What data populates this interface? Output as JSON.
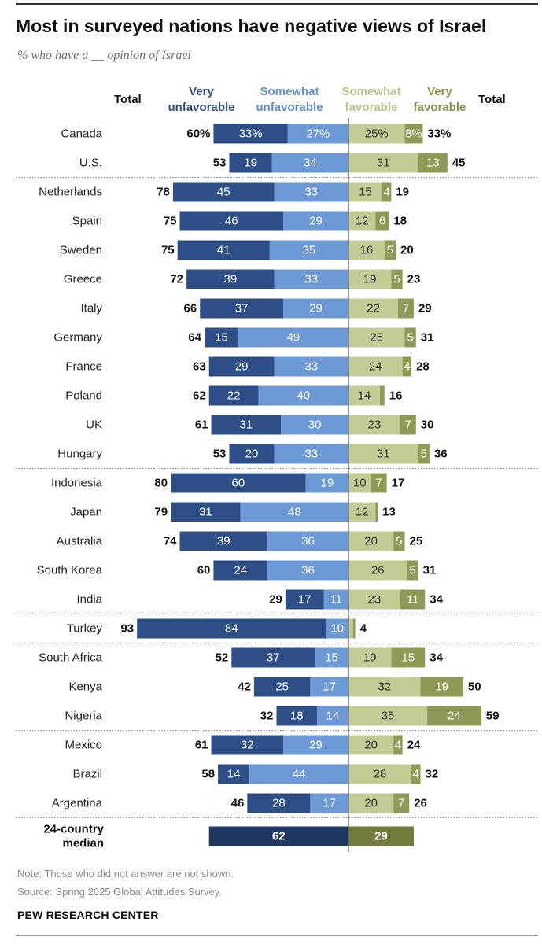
{
  "title": "Most in surveyed nations have negative views of Israel",
  "subtitle": "% who have a __ opinion of Israel",
  "headers": {
    "total_left": "Total",
    "very_unfavorable": [
      "Very",
      "unfavorable"
    ],
    "somewhat_unfavorable": [
      "Somewhat",
      "unfavorable"
    ],
    "somewhat_favorable": [
      "Somewhat",
      "favorable"
    ],
    "very_favorable": [
      "Very",
      "favorable"
    ],
    "total_right": "Total"
  },
  "colors": {
    "very_unfavorable": "#2e4e87",
    "somewhat_unfavorable": "#6d9ad7",
    "somewhat_favorable": "#c4cc96",
    "very_favorable": "#8f9a56",
    "median_unfavorable": "#1f3762",
    "median_favorable": "#707b3c",
    "header_very_unfavorable": "#2e4e87",
    "header_somewhat_unfavorable": "#5f8fd0",
    "header_somewhat_favorable": "#b9c08a",
    "header_very_favorable": "#87924d"
  },
  "chart_data": {
    "type": "bar",
    "orientation": "horizontal-diverging",
    "series_names": [
      "Very unfavorable",
      "Somewhat unfavorable",
      "Somewhat favorable",
      "Very favorable"
    ],
    "rows": [
      {
        "country": "Canada",
        "very_unfav": 33,
        "somewhat_unfav": 27,
        "somewhat_fav": 25,
        "very_fav": 8,
        "total_unfav": 60,
        "total_fav": 33,
        "pct": true
      },
      {
        "country": "U.S.",
        "very_unfav": 19,
        "somewhat_unfav": 34,
        "somewhat_fav": 31,
        "very_fav": 13,
        "total_unfav": 53,
        "total_fav": 45
      },
      {
        "country": "Netherlands",
        "very_unfav": 45,
        "somewhat_unfav": 33,
        "somewhat_fav": 15,
        "very_fav": 4,
        "total_unfav": 78,
        "total_fav": 19
      },
      {
        "country": "Spain",
        "very_unfav": 46,
        "somewhat_unfav": 29,
        "somewhat_fav": 12,
        "very_fav": 6,
        "total_unfav": 75,
        "total_fav": 18
      },
      {
        "country": "Sweden",
        "very_unfav": 41,
        "somewhat_unfav": 35,
        "somewhat_fav": 16,
        "very_fav": 5,
        "total_unfav": 75,
        "total_fav": 20
      },
      {
        "country": "Greece",
        "very_unfav": 39,
        "somewhat_unfav": 33,
        "somewhat_fav": 19,
        "very_fav": 5,
        "total_unfav": 72,
        "total_fav": 23
      },
      {
        "country": "Italy",
        "very_unfav": 37,
        "somewhat_unfav": 29,
        "somewhat_fav": 22,
        "very_fav": 7,
        "total_unfav": 66,
        "total_fav": 29
      },
      {
        "country": "Germany",
        "very_unfav": 15,
        "somewhat_unfav": 49,
        "somewhat_fav": 25,
        "very_fav": 5,
        "total_unfav": 64,
        "total_fav": 31
      },
      {
        "country": "France",
        "very_unfav": 29,
        "somewhat_unfav": 33,
        "somewhat_fav": 24,
        "very_fav": 4,
        "total_unfav": 63,
        "total_fav": 28
      },
      {
        "country": "Poland",
        "very_unfav": 22,
        "somewhat_unfav": 40,
        "somewhat_fav": 14,
        "very_fav": 2,
        "very_fav_label": false,
        "total_unfav": 62,
        "total_fav": 16
      },
      {
        "country": "UK",
        "very_unfav": 31,
        "somewhat_unfav": 30,
        "somewhat_fav": 23,
        "very_fav": 7,
        "total_unfav": 61,
        "total_fav": 30
      },
      {
        "country": "Hungary",
        "very_unfav": 20,
        "somewhat_unfav": 33,
        "somewhat_fav": 31,
        "very_fav": 5,
        "total_unfav": 53,
        "total_fav": 36
      },
      {
        "country": "Indonesia",
        "very_unfav": 60,
        "somewhat_unfav": 19,
        "somewhat_fav": 10,
        "very_fav": 7,
        "total_unfav": 80,
        "total_fav": 17
      },
      {
        "country": "Japan",
        "very_unfav": 31,
        "somewhat_unfav": 48,
        "somewhat_fav": 12,
        "very_fav": 1,
        "very_fav_label": false,
        "total_unfav": 79,
        "total_fav": 13
      },
      {
        "country": "Australia",
        "very_unfav": 39,
        "somewhat_unfav": 36,
        "somewhat_fav": 20,
        "very_fav": 5,
        "total_unfav": 74,
        "total_fav": 25
      },
      {
        "country": "South Korea",
        "very_unfav": 24,
        "somewhat_unfav": 36,
        "somewhat_fav": 26,
        "very_fav": 5,
        "total_unfav": 60,
        "total_fav": 31
      },
      {
        "country": "India",
        "very_unfav": 17,
        "somewhat_unfav": 11,
        "somewhat_fav": 23,
        "very_fav": 11,
        "total_unfav": 29,
        "total_fav": 34
      },
      {
        "country": "Turkey",
        "very_unfav": 84,
        "somewhat_unfav": 10,
        "somewhat_fav": 2,
        "very_fav": 1,
        "somewhat_fav_label": false,
        "very_fav_label": false,
        "total_unfav": 93,
        "total_fav": 4
      },
      {
        "country": "South Africa",
        "very_unfav": 37,
        "somewhat_unfav": 15,
        "somewhat_fav": 19,
        "very_fav": 15,
        "total_unfav": 52,
        "total_fav": 34
      },
      {
        "country": "Kenya",
        "very_unfav": 25,
        "somewhat_unfav": 17,
        "somewhat_fav": 32,
        "very_fav": 19,
        "total_unfav": 42,
        "total_fav": 50
      },
      {
        "country": "Nigeria",
        "very_unfav": 18,
        "somewhat_unfav": 14,
        "somewhat_fav": 35,
        "very_fav": 24,
        "total_unfav": 32,
        "total_fav": 59
      },
      {
        "country": "Mexico",
        "very_unfav": 32,
        "somewhat_unfav": 29,
        "somewhat_fav": 20,
        "very_fav": 4,
        "total_unfav": 61,
        "total_fav": 24
      },
      {
        "country": "Brazil",
        "very_unfav": 14,
        "somewhat_unfav": 44,
        "somewhat_fav": 28,
        "very_fav": 4,
        "total_unfav": 58,
        "total_fav": 32
      },
      {
        "country": "Argentina",
        "very_unfav": 28,
        "somewhat_unfav": 17,
        "somewhat_fav": 20,
        "very_fav": 7,
        "total_unfav": 46,
        "total_fav": 26
      }
    ],
    "group_dividers_after": [
      "U.S.",
      "Hungary",
      "India",
      "Turkey",
      "Nigeria",
      "Argentina"
    ],
    "median": {
      "label": [
        "24-country",
        "median"
      ],
      "unfavorable": 62,
      "favorable": 29
    }
  },
  "notes": {
    "note": "Note: Those who did not answer are not shown.",
    "source": "Source: Spring 2025 Global Attitudes Survey."
  },
  "brand": "PEW RESEARCH CENTER"
}
